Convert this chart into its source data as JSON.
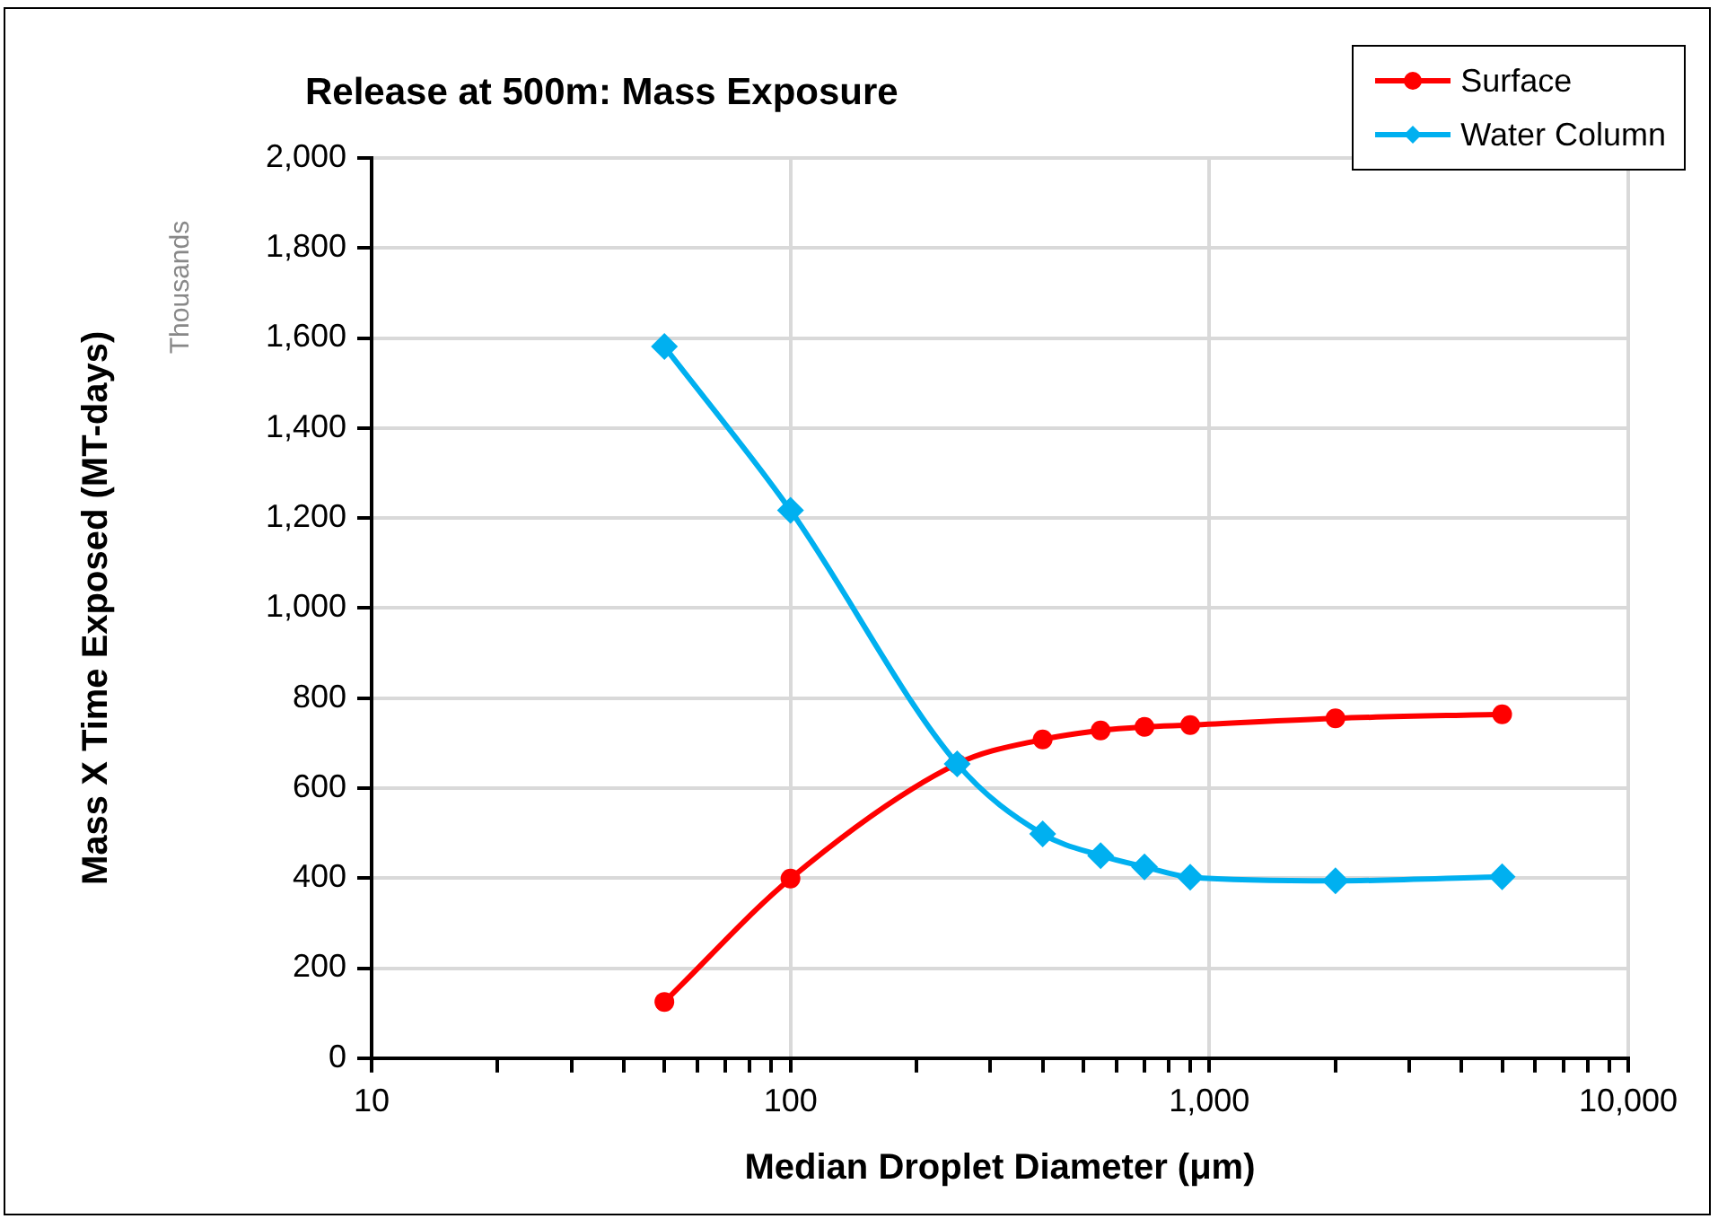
{
  "chart_data": {
    "type": "line",
    "title": "Release at 500m: Mass Exposure",
    "xlabel": "Median Droplet Diameter (μm)",
    "ylabel": "Mass X Time Exposed (MT-days)",
    "annotations": [
      "Thousands"
    ],
    "log": "x",
    "grid": true,
    "legend": "top right",
    "xlim": [
      10,
      10000
    ],
    "xticks": [
      10,
      {
        "value": 20,
        "label": null
      },
      {
        "value": 30,
        "label": null
      },
      {
        "value": 40,
        "label": null
      },
      {
        "value": 50,
        "label": null
      },
      {
        "value": 60,
        "label": null
      },
      {
        "value": 70,
        "label": null
      },
      {
        "value": 80,
        "label": null
      },
      {
        "value": 90,
        "label": null
      },
      100,
      {
        "value": 200,
        "label": null
      },
      {
        "value": 300,
        "label": null
      },
      {
        "value": 400,
        "label": null
      },
      {
        "value": 500,
        "label": null
      },
      {
        "value": 600,
        "label": null
      },
      {
        "value": 700,
        "label": null
      },
      {
        "value": 800,
        "label": null
      },
      {
        "value": 900,
        "label": null
      },
      {
        "value": 1000,
        "label": "1,000"
      },
      {
        "value": 2000,
        "label": null
      },
      {
        "value": 3000,
        "label": null
      },
      {
        "value": 4000,
        "label": null
      },
      {
        "value": 5000,
        "label": null
      },
      {
        "value": 6000,
        "label": null
      },
      {
        "value": 7000,
        "label": null
      },
      {
        "value": 8000,
        "label": null
      },
      {
        "value": 9000,
        "label": null
      },
      {
        "value": 10000,
        "label": "10,000"
      }
    ],
    "ylim": [
      0,
      2000
    ],
    "yticks": [
      0,
      200,
      400,
      600,
      800,
      {
        "value": 1000,
        "label": "1,000"
      },
      {
        "value": 1200,
        "label": "1,200"
      },
      {
        "value": 1400,
        "label": "1,400"
      },
      {
        "value": 1600,
        "label": "1,600"
      },
      {
        "value": 1800,
        "label": "1,800"
      },
      {
        "value": 2000,
        "label": "2,000"
      }
    ],
    "x": [
      50,
      100,
      250,
      400,
      550,
      700,
      900,
      2000,
      5000
    ],
    "series": [
      {
        "name": "Surface",
        "color": "#ff0000",
        "marker": "circle",
        "values": [
          125,
          399,
          654,
          708,
          728,
          736,
          740,
          755,
          764
        ]
      },
      {
        "name": "Water Column",
        "color": "#00b0f0",
        "marker": "diamond",
        "values": [
          1581,
          1217,
          654,
          498,
          450,
          425,
          402,
          394,
          403
        ]
      }
    ]
  }
}
